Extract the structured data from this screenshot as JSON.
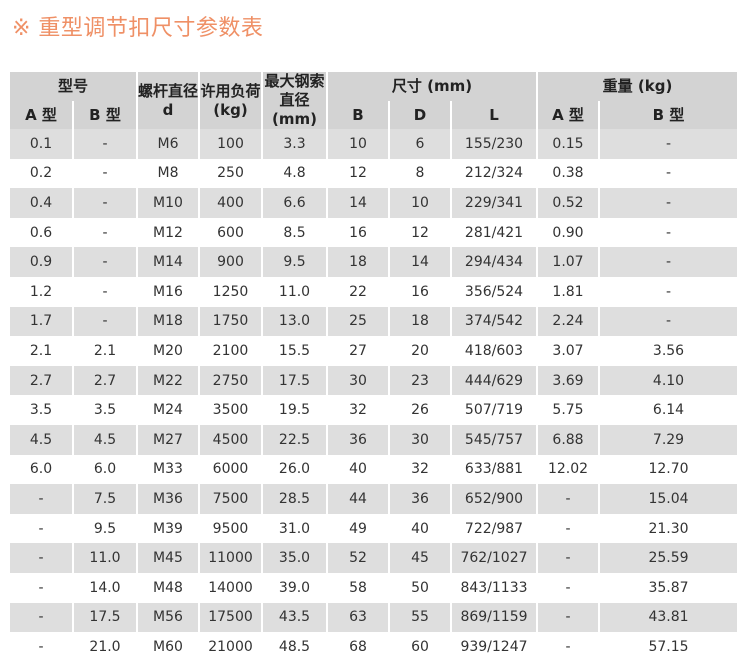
{
  "title": "※ 重型调节扣尺寸参数表",
  "colors": {
    "title": "#ef9066",
    "header_bg": "#d3d3d3",
    "stripe_bg": "#dedede"
  },
  "header": {
    "model": "型号",
    "screw": "螺杆直径 d",
    "load": "许用负荷 (kg)",
    "cable": "最大钢索直径 (mm)",
    "size": "尺寸 (mm)",
    "weight": "重量 (kg)",
    "sub": [
      "A 型",
      "B 型",
      "B",
      "D",
      "L",
      "A 型",
      "B 型"
    ]
  },
  "rows": [
    [
      "0.1",
      "-",
      "M6",
      "100",
      "3.3",
      "10",
      "6",
      "155/230",
      "0.15",
      "-"
    ],
    [
      "0.2",
      "-",
      "M8",
      "250",
      "4.8",
      "12",
      "8",
      "212/324",
      "0.38",
      "-"
    ],
    [
      "0.4",
      "-",
      "M10",
      "400",
      "6.6",
      "14",
      "10",
      "229/341",
      "0.52",
      "-"
    ],
    [
      "0.6",
      "-",
      "M12",
      "600",
      "8.5",
      "16",
      "12",
      "281/421",
      "0.90",
      "-"
    ],
    [
      "0.9",
      "-",
      "M14",
      "900",
      "9.5",
      "18",
      "14",
      "294/434",
      "1.07",
      "-"
    ],
    [
      "1.2",
      "-",
      "M16",
      "1250",
      "11.0",
      "22",
      "16",
      "356/524",
      "1.81",
      "-"
    ],
    [
      "1.7",
      "-",
      "M18",
      "1750",
      "13.0",
      "25",
      "18",
      "374/542",
      "2.24",
      "-"
    ],
    [
      "2.1",
      "2.1",
      "M20",
      "2100",
      "15.5",
      "27",
      "20",
      "418/603",
      "3.07",
      "3.56"
    ],
    [
      "2.7",
      "2.7",
      "M22",
      "2750",
      "17.5",
      "30",
      "23",
      "444/629",
      "3.69",
      "4.10"
    ],
    [
      "3.5",
      "3.5",
      "M24",
      "3500",
      "19.5",
      "32",
      "26",
      "507/719",
      "5.75",
      "6.14"
    ],
    [
      "4.5",
      "4.5",
      "M27",
      "4500",
      "22.5",
      "36",
      "30",
      "545/757",
      "6.88",
      "7.29"
    ],
    [
      "6.0",
      "6.0",
      "M33",
      "6000",
      "26.0",
      "40",
      "32",
      "633/881",
      "12.02",
      "12.70"
    ],
    [
      "-",
      "7.5",
      "M36",
      "7500",
      "28.5",
      "44",
      "36",
      "652/900",
      "-",
      "15.04"
    ],
    [
      "-",
      "9.5",
      "M39",
      "9500",
      "31.0",
      "49",
      "40",
      "722/987",
      "-",
      "21.30"
    ],
    [
      "-",
      "11.0",
      "M45",
      "11000",
      "35.0",
      "52",
      "45",
      "762/1027",
      "-",
      "25.59"
    ],
    [
      "-",
      "14.0",
      "M48",
      "14000",
      "39.0",
      "58",
      "50",
      "843/1133",
      "-",
      "35.87"
    ],
    [
      "-",
      "17.5",
      "M56",
      "17500",
      "43.5",
      "63",
      "55",
      "869/1159",
      "-",
      "43.81"
    ],
    [
      "-",
      "21.0",
      "M60",
      "21000",
      "48.5",
      "68",
      "60",
      "939/1247",
      "-",
      "57.15"
    ]
  ]
}
